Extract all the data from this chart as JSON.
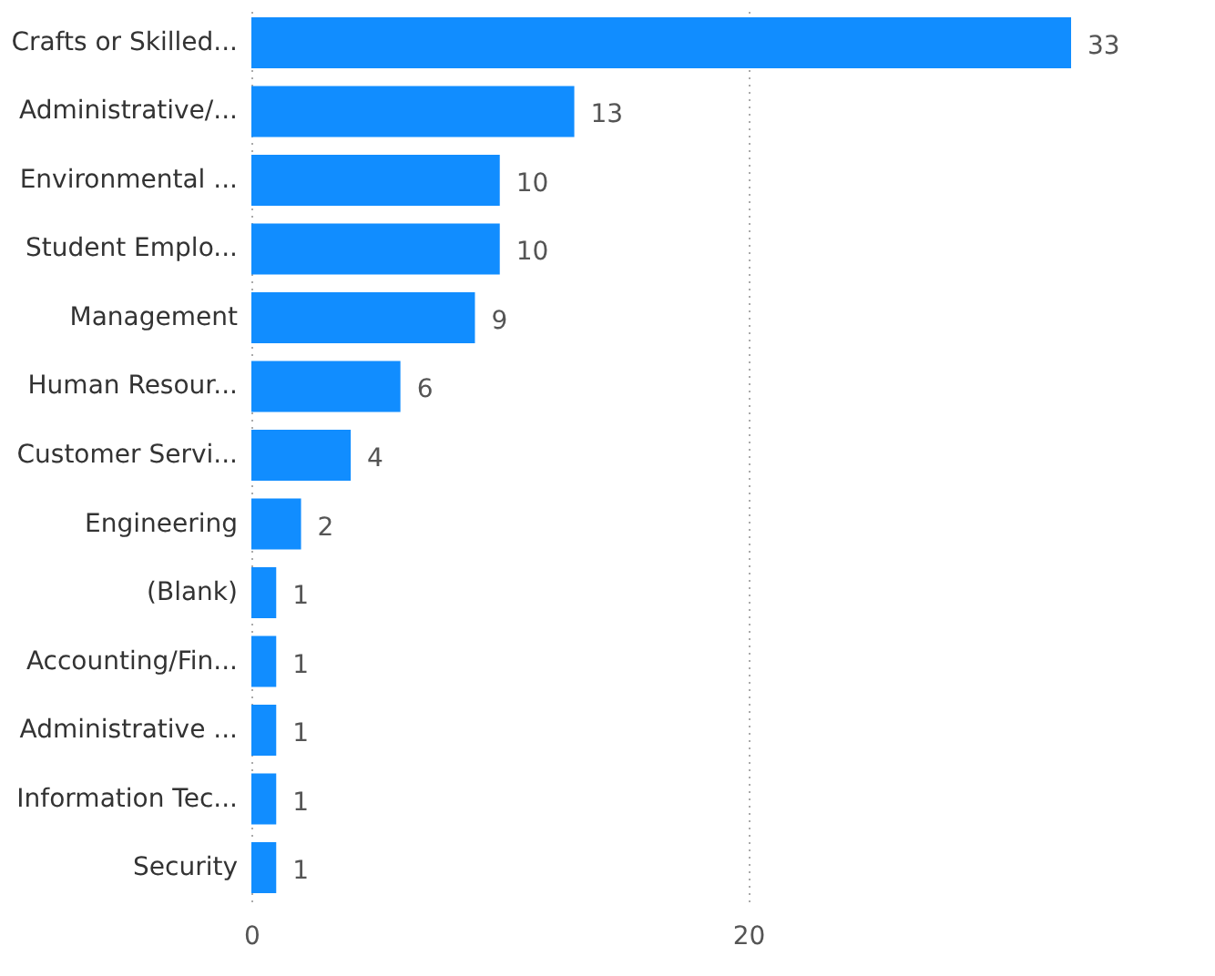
{
  "chart_data": {
    "type": "bar",
    "orientation": "horizontal",
    "categories": [
      "Crafts or Skilled...",
      "Administrative/...",
      "Environmental ...",
      "Student Emplo...",
      "Management",
      "Human Resour...",
      "Customer Servi...",
      "Engineering",
      "(Blank)",
      "Accounting/Fin...",
      "Administrative ...",
      "Information Tec...",
      "Security"
    ],
    "values": [
      33,
      13,
      10,
      10,
      9,
      6,
      4,
      2,
      1,
      1,
      1,
      1,
      1
    ],
    "color": "#118dff",
    "xlim": [
      0,
      33
    ],
    "xticks": [
      0,
      20
    ],
    "grid": "x",
    "data_labels": true
  }
}
